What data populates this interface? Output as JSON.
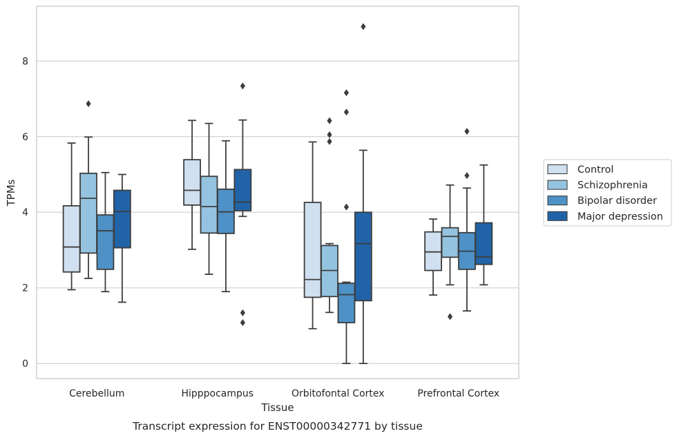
{
  "chart_data": {
    "type": "box",
    "title": "",
    "caption": "Transcript expression for ENST00000342771 by tissue",
    "xlabel": "Tissue",
    "ylabel": "TPMs",
    "ylim": [
      -0.4,
      9.45
    ],
    "yticks": [
      0,
      2,
      4,
      6,
      8
    ],
    "grid": "horizontal",
    "legend_position": "right",
    "categories": [
      "Cerebellum",
      "Hipppocampus",
      "Orbitofontal Cortex",
      "Prefrontal Cortex"
    ],
    "colors": {
      "Control": "#d0e0f0",
      "Schizophrenia": "#94c3df",
      "Bipolar disorder": "#4d91c6",
      "Major depression": "#2163a7",
      "edge": "#3d3d3d",
      "grid": "#d0d0d0",
      "frame": "#c8c8c8"
    },
    "series": [
      {
        "name": "Control",
        "boxes": [
          {
            "category": "Cerebellum",
            "whisker_low": 1.95,
            "q1": 2.42,
            "median": 3.08,
            "q3": 4.17,
            "whisker_high": 5.83,
            "outliers": []
          },
          {
            "category": "Hipppocampus",
            "whisker_low": 3.02,
            "q1": 4.19,
            "median": 4.58,
            "q3": 5.39,
            "whisker_high": 6.43,
            "outliers": []
          },
          {
            "category": "Orbitofontal Cortex",
            "whisker_low": 0.92,
            "q1": 1.75,
            "median": 2.22,
            "q3": 4.26,
            "whisker_high": 5.86,
            "outliers": []
          },
          {
            "category": "Prefrontal Cortex",
            "whisker_low": 1.81,
            "q1": 2.46,
            "median": 2.95,
            "q3": 3.48,
            "whisker_high": 3.82,
            "outliers": []
          }
        ]
      },
      {
        "name": "Schizophrenia",
        "boxes": [
          {
            "category": "Cerebellum",
            "whisker_low": 2.25,
            "q1": 2.92,
            "median": 4.37,
            "q3": 5.03,
            "whisker_high": 5.99,
            "outliers": [
              6.87
            ]
          },
          {
            "category": "Hipppocampus",
            "whisker_low": 2.36,
            "q1": 3.45,
            "median": 4.15,
            "q3": 4.95,
            "whisker_high": 6.35,
            "outliers": []
          },
          {
            "category": "Orbitofontal Cortex",
            "whisker_low": 1.35,
            "q1": 1.77,
            "median": 2.46,
            "q3": 3.12,
            "whisker_high": 3.17,
            "outliers": [
              5.87,
              6.05,
              6.42
            ]
          },
          {
            "category": "Prefrontal Cortex",
            "whisker_low": 2.08,
            "q1": 2.81,
            "median": 3.36,
            "q3": 3.59,
            "whisker_high": 4.72,
            "outliers": [
              1.24
            ]
          }
        ]
      },
      {
        "name": "Bipolar disorder",
        "boxes": [
          {
            "category": "Cerebellum",
            "whisker_low": 1.9,
            "q1": 2.49,
            "median": 3.51,
            "q3": 3.93,
            "whisker_high": 5.05,
            "outliers": []
          },
          {
            "category": "Hipppocampus",
            "whisker_low": 1.9,
            "q1": 3.44,
            "median": 4.01,
            "q3": 4.61,
            "whisker_high": 5.89,
            "outliers": []
          },
          {
            "category": "Orbitofontal Cortex",
            "whisker_low": 0.0,
            "q1": 1.08,
            "median": 1.82,
            "q3": 2.12,
            "whisker_high": 2.15,
            "outliers": [
              4.14,
              6.65,
              7.16
            ]
          },
          {
            "category": "Prefrontal Cortex",
            "whisker_low": 1.39,
            "q1": 2.49,
            "median": 2.97,
            "q3": 3.46,
            "whisker_high": 4.64,
            "outliers": [
              4.97,
              6.14
            ]
          }
        ]
      },
      {
        "name": "Major depression",
        "boxes": [
          {
            "category": "Cerebellum",
            "whisker_low": 1.62,
            "q1": 3.06,
            "median": 4.02,
            "q3": 4.58,
            "whisker_high": 5.0,
            "outliers": []
          },
          {
            "category": "Hipppocampus",
            "whisker_low": 3.89,
            "q1": 4.04,
            "median": 4.27,
            "q3": 5.13,
            "whisker_high": 6.44,
            "outliers": [
              1.08,
              1.34,
              7.34
            ]
          },
          {
            "category": "Orbitofontal Cortex",
            "whisker_low": 0.0,
            "q1": 1.66,
            "median": 3.17,
            "q3": 4.0,
            "whisker_high": 5.64,
            "outliers": [
              8.91
            ]
          },
          {
            "category": "Prefrontal Cortex",
            "whisker_low": 2.08,
            "q1": 2.62,
            "median": 2.82,
            "q3": 3.72,
            "whisker_high": 5.25,
            "outliers": []
          }
        ]
      }
    ]
  }
}
